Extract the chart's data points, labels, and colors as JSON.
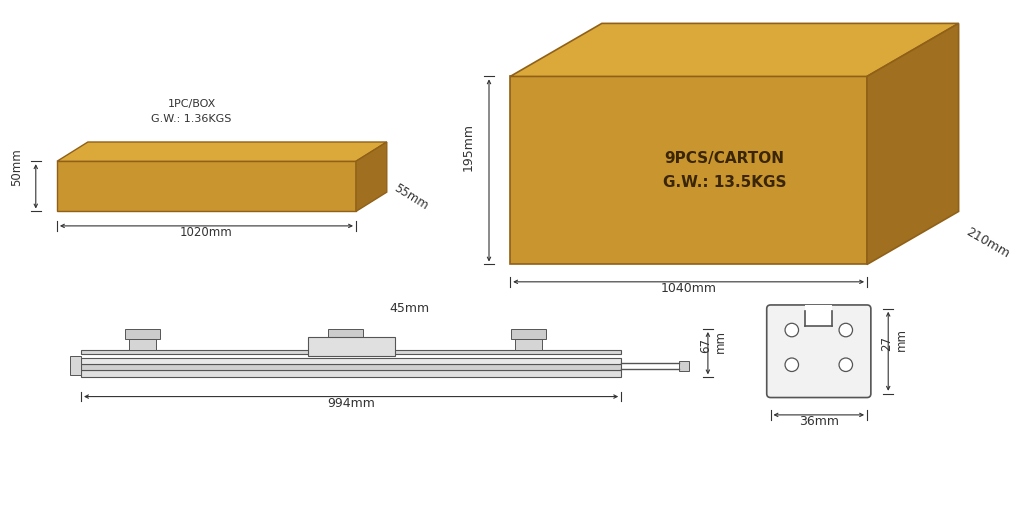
{
  "bg_color": "#ffffff",
  "line_color": "#555555",
  "dim_color": "#333333",
  "box_front_small": "#c8952e",
  "box_top_small": "#daa93a",
  "box_right_small": "#a07020",
  "box_front_large": "#c8952e",
  "box_top_large": "#daa93a",
  "box_right_large": "#a07020",
  "product_length_label": "994mm",
  "product_height_label": "67\nmm",
  "product_depth_label": "45mm",
  "cross_width_label": "36mm",
  "cross_height_label": "27\nmm",
  "small_box_width_label": "1020mm",
  "small_box_height_label": "50mm",
  "small_box_depth_label": "55mm",
  "small_box_info": "1PC/BOX\nG.W.: 1.36KGS",
  "large_box_width_label": "1040mm",
  "large_box_height_label": "195mm",
  "large_box_depth_label": "210mm",
  "large_box_info": "9PCS/CARTON\nG.W.: 13.5KGS"
}
